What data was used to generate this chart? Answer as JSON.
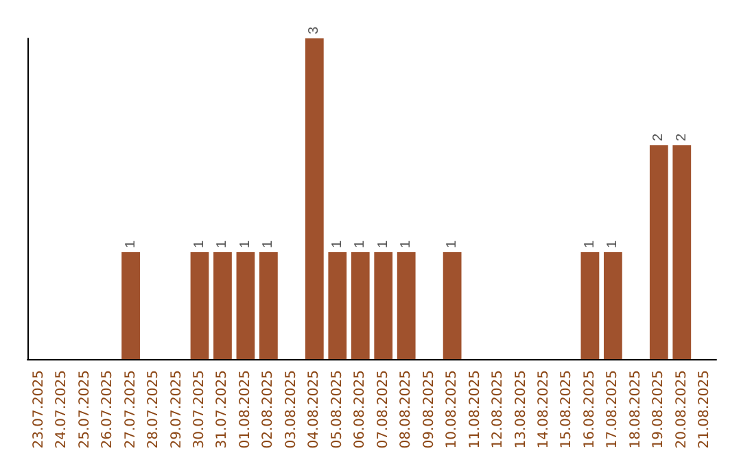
{
  "chart_data": {
    "type": "bar",
    "categories": [
      "23.07.2025",
      "24.07.2025",
      "25.07.2025",
      "26.07.2025",
      "27.07.2025",
      "28.07.2025",
      "29.07.2025",
      "30.07.2025",
      "31.07.2025",
      "01.08.2025",
      "02.08.2025",
      "03.08.2025",
      "04.08.2025",
      "05.08.2025",
      "06.08.2025",
      "07.08.2025",
      "08.08.2025",
      "09.08.2025",
      "10.08.2025",
      "11.08.2025",
      "12.08.2025",
      "13.08.2025",
      "14.08.2025",
      "15.08.2025",
      "16.08.2025",
      "17.08.2025",
      "18.08.2025",
      "19.08.2025",
      "20.08.2025",
      "21.08.2025"
    ],
    "values": [
      0,
      0,
      0,
      0,
      1,
      0,
      0,
      1,
      1,
      1,
      1,
      0,
      3,
      1,
      1,
      1,
      1,
      0,
      1,
      0,
      0,
      0,
      0,
      0,
      1,
      1,
      0,
      2,
      2,
      0
    ],
    "value_labels": [
      null,
      null,
      null,
      null,
      "1",
      null,
      null,
      "1",
      "1",
      "1",
      "1",
      null,
      "3",
      "1",
      "1",
      "1",
      "1",
      null,
      "1",
      null,
      null,
      null,
      null,
      null,
      "1",
      "1",
      null,
      "2",
      "2",
      null
    ],
    "color": "#a0522d",
    "grid": false
  }
}
